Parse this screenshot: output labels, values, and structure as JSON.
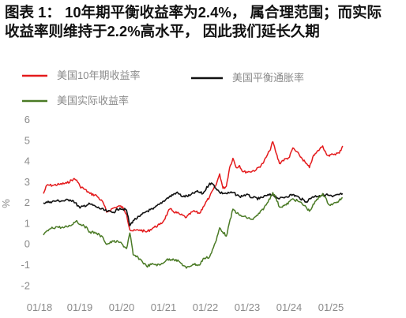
{
  "title_line1": "图表 1： 10年期平衡收益率为2.4%， 属合理范围；而实际",
  "title_line2": "收益率则维持于2.2%高水平， 因此我们延长久期",
  "chart_data": {
    "type": "line",
    "ylabel": "%",
    "ylim": [
      -2,
      6
    ],
    "yticks": [
      -2,
      -1,
      0,
      1,
      2,
      3,
      4,
      5,
      6
    ],
    "xticks": [
      "01/18",
      "01/19",
      "01/20",
      "01/21",
      "01/22",
      "01/23",
      "01/24",
      "01/25"
    ],
    "grid": false,
    "legend_position": "top",
    "series": [
      {
        "name": "美国10年期收益率",
        "color": "#e41a1c",
        "points": [
          [
            "2018-01",
            2.45
          ],
          [
            "2018-02",
            2.85
          ],
          [
            "2018-04",
            2.85
          ],
          [
            "2018-06",
            2.9
          ],
          [
            "2018-08",
            2.95
          ],
          [
            "2018-10",
            3.15
          ],
          [
            "2018-11",
            3.1
          ],
          [
            "2018-12",
            2.8
          ],
          [
            "2019-01",
            2.7
          ],
          [
            "2019-03",
            2.45
          ],
          [
            "2019-05",
            2.35
          ],
          [
            "2019-07",
            2.0
          ],
          [
            "2019-08",
            1.55
          ],
          [
            "2019-10",
            1.75
          ],
          [
            "2019-12",
            1.85
          ],
          [
            "2020-01",
            1.75
          ],
          [
            "2020-02",
            1.45
          ],
          [
            "2020-03",
            0.7
          ],
          [
            "2020-04",
            0.65
          ],
          [
            "2020-06",
            0.7
          ],
          [
            "2020-08",
            0.6
          ],
          [
            "2020-10",
            0.8
          ],
          [
            "2020-12",
            0.95
          ],
          [
            "2021-01",
            1.1
          ],
          [
            "2021-03",
            1.7
          ],
          [
            "2021-04",
            1.6
          ],
          [
            "2021-06",
            1.45
          ],
          [
            "2021-08",
            1.3
          ],
          [
            "2021-10",
            1.6
          ],
          [
            "2021-12",
            1.5
          ],
          [
            "2022-01",
            1.8
          ],
          [
            "2022-03",
            2.3
          ],
          [
            "2022-05",
            2.9
          ],
          [
            "2022-06",
            3.4
          ],
          [
            "2022-07",
            2.7
          ],
          [
            "2022-08",
            2.8
          ],
          [
            "2022-09",
            3.7
          ],
          [
            "2022-10",
            4.15
          ],
          [
            "2022-11",
            3.7
          ],
          [
            "2022-12",
            3.8
          ],
          [
            "2023-01",
            3.5
          ],
          [
            "2023-03",
            3.5
          ],
          [
            "2023-05",
            3.6
          ],
          [
            "2023-07",
            3.9
          ],
          [
            "2023-08",
            4.2
          ],
          [
            "2023-09",
            4.5
          ],
          [
            "2023-10",
            4.95
          ],
          [
            "2023-11",
            4.4
          ],
          [
            "2023-12",
            3.9
          ],
          [
            "2024-01",
            4.05
          ],
          [
            "2024-03",
            4.2
          ],
          [
            "2024-04",
            4.65
          ],
          [
            "2024-06",
            4.3
          ],
          [
            "2024-08",
            3.9
          ],
          [
            "2024-09",
            3.7
          ],
          [
            "2024-10",
            4.2
          ],
          [
            "2024-11",
            4.4
          ],
          [
            "2025-01",
            4.75
          ],
          [
            "2025-02",
            4.4
          ],
          [
            "2025-03",
            4.25
          ],
          [
            "2025-04",
            4.35
          ],
          [
            "2025-06",
            4.4
          ],
          [
            "2025-07",
            4.75
          ]
        ]
      },
      {
        "name": "美国平衡通胀率",
        "color": "#111111",
        "points": [
          [
            "2018-01",
            2.0
          ],
          [
            "2018-03",
            2.05
          ],
          [
            "2018-05",
            2.1
          ],
          [
            "2018-07",
            2.1
          ],
          [
            "2018-09",
            2.15
          ],
          [
            "2018-10",
            2.1
          ],
          [
            "2018-12",
            1.75
          ],
          [
            "2019-01",
            1.85
          ],
          [
            "2019-03",
            1.95
          ],
          [
            "2019-05",
            1.8
          ],
          [
            "2019-08",
            1.6
          ],
          [
            "2019-10",
            1.55
          ],
          [
            "2019-12",
            1.75
          ],
          [
            "2020-02",
            1.65
          ],
          [
            "2020-03",
            0.9
          ],
          [
            "2020-04",
            1.15
          ],
          [
            "2020-06",
            1.35
          ],
          [
            "2020-08",
            1.6
          ],
          [
            "2020-10",
            1.7
          ],
          [
            "2020-12",
            1.95
          ],
          [
            "2021-02",
            2.2
          ],
          [
            "2021-05",
            2.5
          ],
          [
            "2021-07",
            2.3
          ],
          [
            "2021-09",
            2.35
          ],
          [
            "2021-11",
            2.55
          ],
          [
            "2022-01",
            2.45
          ],
          [
            "2022-03",
            2.95
          ],
          [
            "2022-04",
            2.9
          ],
          [
            "2022-06",
            2.5
          ],
          [
            "2022-08",
            2.45
          ],
          [
            "2022-10",
            2.5
          ],
          [
            "2022-12",
            2.3
          ],
          [
            "2023-02",
            2.4
          ],
          [
            "2023-04",
            2.25
          ],
          [
            "2023-06",
            2.2
          ],
          [
            "2023-08",
            2.35
          ],
          [
            "2023-10",
            2.4
          ],
          [
            "2023-12",
            2.2
          ],
          [
            "2024-02",
            2.3
          ],
          [
            "2024-04",
            2.4
          ],
          [
            "2024-06",
            2.25
          ],
          [
            "2024-08",
            2.05
          ],
          [
            "2024-10",
            2.3
          ],
          [
            "2024-12",
            2.35
          ],
          [
            "2025-02",
            2.4
          ],
          [
            "2025-04",
            2.3
          ],
          [
            "2025-07",
            2.45
          ]
        ]
      },
      {
        "name": "美国实际收益率",
        "color": "#4a7a25",
        "points": [
          [
            "2018-01",
            0.45
          ],
          [
            "2018-03",
            0.75
          ],
          [
            "2018-05",
            0.85
          ],
          [
            "2018-07",
            0.8
          ],
          [
            "2018-09",
            0.9
          ],
          [
            "2018-11",
            1.15
          ],
          [
            "2018-12",
            0.95
          ],
          [
            "2019-01",
            0.95
          ],
          [
            "2019-03",
            0.6
          ],
          [
            "2019-05",
            0.55
          ],
          [
            "2019-07",
            0.3
          ],
          [
            "2019-08",
            0.0
          ],
          [
            "2019-10",
            0.15
          ],
          [
            "2019-12",
            0.1
          ],
          [
            "2020-02",
            -0.2
          ],
          [
            "2020-03",
            0.55
          ],
          [
            "2020-04",
            -0.5
          ],
          [
            "2020-06",
            -0.7
          ],
          [
            "2020-08",
            -1.05
          ],
          [
            "2020-10",
            -0.95
          ],
          [
            "2020-12",
            -1.0
          ],
          [
            "2021-02",
            -0.75
          ],
          [
            "2021-04",
            -0.7
          ],
          [
            "2021-06",
            -0.85
          ],
          [
            "2021-08",
            -1.15
          ],
          [
            "2021-10",
            -0.95
          ],
          [
            "2021-12",
            -1.0
          ],
          [
            "2022-01",
            -0.7
          ],
          [
            "2022-03",
            -0.6
          ],
          [
            "2022-05",
            0.2
          ],
          [
            "2022-06",
            0.8
          ],
          [
            "2022-08",
            0.4
          ],
          [
            "2022-10",
            1.7
          ],
          [
            "2022-12",
            1.4
          ],
          [
            "2023-02",
            1.3
          ],
          [
            "2023-04",
            1.2
          ],
          [
            "2023-06",
            1.5
          ],
          [
            "2023-08",
            1.9
          ],
          [
            "2023-10",
            2.5
          ],
          [
            "2023-11",
            2.2
          ],
          [
            "2023-12",
            1.8
          ],
          [
            "2024-02",
            1.9
          ],
          [
            "2024-04",
            2.2
          ],
          [
            "2024-06",
            2.05
          ],
          [
            "2024-08",
            1.8
          ],
          [
            "2024-09",
            1.6
          ],
          [
            "2024-11",
            2.1
          ],
          [
            "2025-01",
            2.45
          ],
          [
            "2025-03",
            1.9
          ],
          [
            "2025-05",
            2.0
          ],
          [
            "2025-07",
            2.25
          ]
        ]
      }
    ]
  }
}
